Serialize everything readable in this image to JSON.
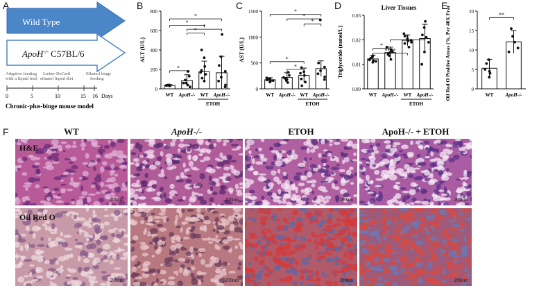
{
  "panel_letters": [
    "A",
    "B",
    "C",
    "D",
    "E",
    "F"
  ],
  "panelA": {
    "arrow1": "Wild Type",
    "arrow2_gene": "ApoH",
    "arrow2_sup": "-/-",
    "arrow2_strain": " C57BL/6",
    "ticks": [
      "0",
      "5",
      "10",
      "15",
      "16"
    ],
    "days": "Days",
    "phase1": [
      "Adaptive feeding",
      "with a liquid feed"
    ],
    "phase2": [
      "Lieber-DeCarli",
      "ethanol liquid diet"
    ],
    "phase3": [
      "Ethanol binge",
      "feeding"
    ],
    "caption": "Chronic-plus-binge mouse model",
    "colors": {
      "arrow1_fill": "#4a86c8",
      "arrow2_stroke": "#4a86c8"
    }
  },
  "chart_data": [
    {
      "id": "B",
      "type": "bar",
      "ylabel": "ALT (U/L)",
      "ylim": [
        0,
        800
      ],
      "yticks": [
        "0",
        "200",
        "400",
        "600",
        "800"
      ],
      "categories": [
        "WT",
        "ApoH-/-",
        "WT",
        "ApoH-/-"
      ],
      "group_label": "ETOH",
      "values": [
        35,
        85,
        175,
        165
      ],
      "errors": [
        10,
        60,
        110,
        170
      ],
      "points": [
        [
          30,
          32,
          35,
          38,
          40,
          36,
          34
        ],
        [
          20,
          40,
          60,
          90,
          130,
          180,
          60
        ],
        [
          80,
          110,
          150,
          190,
          230,
          320,
          400,
          170
        ],
        [
          20,
          40,
          80,
          120,
          180,
          240,
          330,
          560
        ]
      ],
      "sig": [
        "*",
        "*",
        "*",
        "*",
        "*"
      ]
    },
    {
      "id": "C",
      "type": "bar",
      "ylabel": "AST (U/L)",
      "ylim": [
        0,
        1500
      ],
      "yticks": [
        "0",
        "500",
        "1000",
        "1500"
      ],
      "categories": [
        "WT",
        "ApoH-/-",
        "WT",
        "ApoH-/-"
      ],
      "group_label": "ETOH",
      "values": [
        175,
        220,
        260,
        390
      ],
      "errors": [
        40,
        90,
        140,
        150
      ],
      "points": [
        [
          130,
          150,
          170,
          180,
          190,
          200,
          210,
          160
        ],
        [
          120,
          160,
          200,
          260,
          320,
          220,
          180
        ],
        [
          60,
          130,
          190,
          260,
          330,
          410,
          300
        ],
        [
          180,
          230,
          290,
          350,
          420,
          500,
          1330
        ]
      ],
      "sig": [
        "*",
        "*",
        "*",
        "*",
        "*"
      ]
    },
    {
      "id": "D",
      "type": "bar",
      "title": "Liver Tissues",
      "ylabel": "Triglyceride (mmol/L)",
      "ylim": [
        0,
        0.03
      ],
      "yticks": [
        "0.00",
        "0.01",
        "0.02",
        "0.03"
      ],
      "categories": [
        "WT",
        "ApoH-/-",
        "WT",
        "ApoH-/-"
      ],
      "group_label": "ETOH",
      "values": [
        0.0122,
        0.0148,
        0.0198,
        0.0205
      ],
      "errors": [
        0.0015,
        0.0022,
        0.0022,
        0.0058
      ],
      "points": [
        [
          0.0108,
          0.0115,
          0.012,
          0.0125,
          0.013,
          0.0135,
          0.0118,
          0.0112
        ],
        [
          0.012,
          0.0135,
          0.0145,
          0.0152,
          0.016,
          0.017,
          0.0148,
          0.014
        ],
        [
          0.017,
          0.0185,
          0.0195,
          0.0205,
          0.0215,
          0.0225,
          0.0198,
          0.019
        ],
        [
          0.01,
          0.015,
          0.019,
          0.022,
          0.025,
          0.0275,
          0.021
        ]
      ],
      "sig": [
        "*",
        "****",
        "*"
      ]
    },
    {
      "id": "E",
      "type": "bar",
      "ylabel": "Oil Red O Positive Areas (%, Per 40X Frame)",
      "ylim": [
        0,
        20
      ],
      "yticks": [
        "0",
        "5",
        "10",
        "15",
        "20"
      ],
      "categories": [
        "WT",
        "ApoH-/-"
      ],
      "values": [
        5.3,
        12.1
      ],
      "errors": [
        2.3,
        2.9
      ],
      "points": [
        [
          3.0,
          4.0,
          5.0,
          6.5,
          7.5,
          4.5
        ],
        [
          9.5,
          10.5,
          12.0,
          13.5,
          15.5
        ]
      ],
      "sig": [
        "**"
      ]
    }
  ],
  "panelF": {
    "columns": [
      "WT",
      "ApoH-/-",
      "ETOH",
      "ApoH-/- + ETOH"
    ],
    "row_labels": [
      "H&E",
      "Oil Red O"
    ],
    "scale": "200nm"
  }
}
